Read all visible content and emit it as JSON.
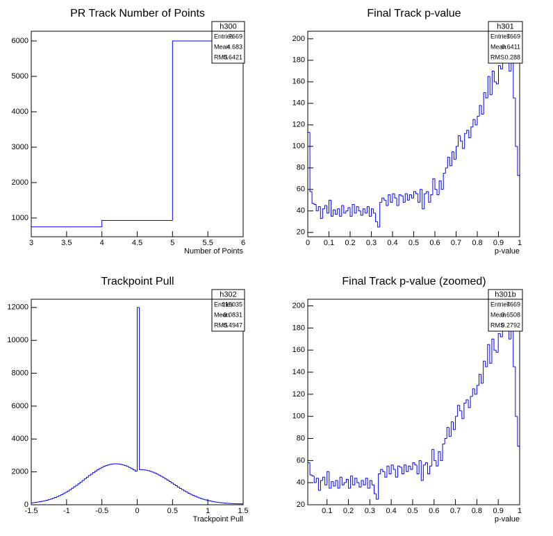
{
  "chart_data": [
    {
      "type": "histogram",
      "title": "PR Track Number of Points",
      "x_label": "Number of Points",
      "color": "#0000ff",
      "bins": [
        3,
        4,
        5,
        6
      ],
      "values": [
        750,
        930,
        6000
      ],
      "xlim": [
        3,
        6
      ],
      "ylim": [
        470,
        6275
      ],
      "xticks": [
        3,
        3.5,
        4,
        4.5,
        5,
        5.5,
        6
      ],
      "yticks": [
        1000,
        2000,
        3000,
        4000,
        5000,
        6000
      ],
      "stats": {
        "name": "h300",
        "labels": [
          "Entries",
          "Mean",
          "RMS"
        ],
        "values": [
          7669,
          4.683,
          0.6421
        ]
      }
    },
    {
      "type": "histogram",
      "title": "Final Track p-value",
      "x_label": "p-value",
      "color": "#0000ff",
      "bins": [
        0,
        0.01,
        0.02,
        0.03,
        0.04,
        0.05,
        0.06,
        0.07,
        0.08,
        0.09,
        0.1,
        0.11,
        0.12,
        0.13,
        0.14,
        0.15,
        0.16,
        0.17,
        0.18,
        0.19,
        0.2,
        0.21,
        0.22,
        0.23,
        0.24,
        0.25,
        0.26,
        0.27,
        0.28,
        0.29,
        0.3,
        0.31,
        0.32,
        0.33,
        0.34,
        0.35,
        0.36,
        0.37,
        0.38,
        0.39,
        0.4,
        0.41,
        0.42,
        0.43,
        0.44,
        0.45,
        0.46,
        0.47,
        0.48,
        0.49,
        0.5,
        0.51,
        0.52,
        0.53,
        0.54,
        0.55,
        0.56,
        0.57,
        0.58,
        0.59,
        0.6,
        0.61,
        0.62,
        0.63,
        0.64,
        0.65,
        0.66,
        0.67,
        0.68,
        0.69,
        0.7,
        0.71,
        0.72,
        0.73,
        0.74,
        0.75,
        0.76,
        0.77,
        0.78,
        0.79,
        0.8,
        0.81,
        0.82,
        0.83,
        0.84,
        0.85,
        0.86,
        0.87,
        0.88,
        0.89,
        0.9,
        0.91,
        0.92,
        0.93,
        0.94,
        0.95,
        0.96,
        0.97,
        0.98,
        0.99,
        1
      ],
      "values": [
        113,
        58,
        47,
        46,
        40,
        44,
        33,
        42,
        45,
        38,
        50,
        35,
        41,
        37,
        42,
        35,
        45,
        38,
        40,
        43,
        35,
        46,
        38,
        44,
        40,
        36,
        42,
        38,
        44,
        35,
        42,
        38,
        30,
        25,
        48,
        52,
        50,
        45,
        55,
        48,
        56,
        52,
        45,
        55,
        54,
        48,
        56,
        50,
        55,
        52,
        58,
        56,
        48,
        60,
        42,
        56,
        58,
        48,
        55,
        70,
        60,
        55,
        68,
        60,
        75,
        80,
        90,
        82,
        95,
        88,
        100,
        110,
        105,
        98,
        112,
        115,
        108,
        118,
        125,
        120,
        128,
        138,
        130,
        150,
        145,
        165,
        148,
        170,
        160,
        158,
        175,
        172,
        180,
        185,
        178,
        170,
        190,
        145,
        100,
        73
      ],
      "xlim": [
        0,
        1
      ],
      "ylim": [
        16,
        207
      ],
      "xticks": [
        0,
        0.1,
        0.2,
        0.3,
        0.4,
        0.5,
        0.6,
        0.7,
        0.8,
        0.9,
        1
      ],
      "yticks": [
        20,
        40,
        60,
        80,
        100,
        120,
        140,
        160,
        180,
        200
      ],
      "stats": {
        "name": "h301",
        "labels": [
          "Entries",
          "Mean",
          "RMS"
        ],
        "values": [
          7669,
          0.6411,
          0.288
        ]
      }
    },
    {
      "type": "histogram",
      "title": "Trackpoint Pull",
      "x_label": "Trackpoint Pull",
      "color": "#0000ff",
      "bins": [
        -1.5,
        -1.47,
        -1.44,
        -1.41,
        -1.38,
        -1.35,
        -1.32,
        -1.29,
        -1.26,
        -1.23,
        -1.2,
        -1.17,
        -1.14,
        -1.11,
        -1.08,
        -1.05,
        -1.02,
        -0.99,
        -0.96,
        -0.93,
        -0.9,
        -0.87,
        -0.84,
        -0.81,
        -0.78,
        -0.75,
        -0.72,
        -0.69,
        -0.66,
        -0.63,
        -0.6,
        -0.57,
        -0.54,
        -0.51,
        -0.48,
        -0.45,
        -0.42,
        -0.39,
        -0.36,
        -0.33,
        -0.3,
        -0.27,
        -0.24,
        -0.21,
        -0.18,
        -0.15,
        -0.12,
        -0.09,
        -0.06,
        -0.03,
        0,
        0.03,
        0.06,
        0.09,
        0.12,
        0.15,
        0.18,
        0.21,
        0.24,
        0.27,
        0.3,
        0.33,
        0.36,
        0.39,
        0.42,
        0.45,
        0.48,
        0.51,
        0.54,
        0.57,
        0.6,
        0.63,
        0.66,
        0.69,
        0.72,
        0.75,
        0.78,
        0.81,
        0.84,
        0.87,
        0.9,
        0.93,
        0.96,
        0.99,
        1.02,
        1.05,
        1.08,
        1.11,
        1.14,
        1.17,
        1.2,
        1.23,
        1.26,
        1.29,
        1.32,
        1.35,
        1.38,
        1.41,
        1.44,
        1.47,
        1.5
      ],
      "values": [
        116,
        131,
        148,
        167,
        189,
        214,
        242,
        274,
        310,
        350,
        394,
        443,
        496,
        554,
        617,
        685,
        758,
        835,
        917,
        1003,
        1093,
        1185,
        1280,
        1378,
        1476,
        1576,
        1674,
        1772,
        1866,
        1958,
        2044,
        2126,
        2202,
        2270,
        2331,
        2382,
        2425,
        2456,
        2478,
        2489,
        2489,
        2478,
        2456,
        2425,
        2382,
        2331,
        2270,
        2202,
        2126,
        2044,
        12000,
        2140,
        2136,
        2124,
        2102,
        2073,
        2033,
        1987,
        1932,
        1871,
        1806,
        1734,
        1657,
        1579,
        1497,
        1413,
        1327,
        1243,
        1159,
        1075,
        995,
        916,
        840,
        769,
        699,
        634,
        573,
        517,
        464,
        416,
        372,
        330,
        294,
        261,
        231,
        205,
        182,
        161,
        143,
        127,
        114,
        102,
        92,
        83,
        76,
        69,
        64,
        60,
        56,
        53
      ],
      "xlim": [
        -1.5,
        1.5
      ],
      "ylim": [
        0,
        12500
      ],
      "xticks": [
        -1.5,
        -1,
        -0.5,
        0,
        0.5,
        1,
        1.5
      ],
      "yticks": [
        0,
        2000,
        4000,
        6000,
        8000,
        10000,
        12000
      ],
      "stats": {
        "name": "h302",
        "labels": [
          "Entries",
          "Mean",
          "RMS"
        ],
        "values": [
          115035,
          -0.0831,
          0.4947
        ]
      }
    },
    {
      "type": "histogram",
      "title": "Final Track p-value (zoomed)",
      "x_label": "p-value",
      "color": "#0000ff",
      "bins": [
        0.01,
        0.02,
        0.03,
        0.04,
        0.05,
        0.06,
        0.07,
        0.08,
        0.09,
        0.1,
        0.11,
        0.12,
        0.13,
        0.14,
        0.15,
        0.16,
        0.17,
        0.18,
        0.19,
        0.2,
        0.21,
        0.22,
        0.23,
        0.24,
        0.25,
        0.26,
        0.27,
        0.28,
        0.29,
        0.3,
        0.31,
        0.32,
        0.33,
        0.34,
        0.35,
        0.36,
        0.37,
        0.38,
        0.39,
        0.4,
        0.41,
        0.42,
        0.43,
        0.44,
        0.45,
        0.46,
        0.47,
        0.48,
        0.49,
        0.5,
        0.51,
        0.52,
        0.53,
        0.54,
        0.55,
        0.56,
        0.57,
        0.58,
        0.59,
        0.6,
        0.61,
        0.62,
        0.63,
        0.64,
        0.65,
        0.66,
        0.67,
        0.68,
        0.69,
        0.7,
        0.71,
        0.72,
        0.73,
        0.74,
        0.75,
        0.76,
        0.77,
        0.78,
        0.79,
        0.8,
        0.81,
        0.82,
        0.83,
        0.84,
        0.85,
        0.86,
        0.87,
        0.88,
        0.89,
        0.9,
        0.91,
        0.92,
        0.93,
        0.94,
        0.95,
        0.96,
        0.97,
        0.98,
        0.99,
        1
      ],
      "values": [
        58,
        47,
        46,
        40,
        44,
        33,
        42,
        45,
        38,
        50,
        35,
        41,
        37,
        42,
        35,
        45,
        38,
        40,
        43,
        35,
        46,
        38,
        44,
        40,
        36,
        42,
        38,
        44,
        35,
        42,
        38,
        30,
        25,
        48,
        52,
        50,
        45,
        55,
        48,
        56,
        52,
        45,
        55,
        54,
        48,
        56,
        50,
        55,
        52,
        58,
        56,
        48,
        60,
        42,
        56,
        58,
        48,
        55,
        70,
        60,
        55,
        68,
        60,
        75,
        80,
        90,
        82,
        95,
        88,
        100,
        110,
        105,
        98,
        112,
        115,
        108,
        118,
        125,
        120,
        128,
        138,
        130,
        150,
        145,
        165,
        148,
        170,
        160,
        158,
        175,
        172,
        180,
        185,
        178,
        170,
        190,
        145,
        100,
        73
      ],
      "xlim": [
        0.01,
        1
      ],
      "ylim": [
        20,
        206
      ],
      "xticks": [
        0.1,
        0.2,
        0.3,
        0.4,
        0.5,
        0.6,
        0.7,
        0.8,
        0.9,
        1
      ],
      "yticks": [
        20,
        40,
        60,
        80,
        100,
        120,
        140,
        160,
        180,
        200
      ],
      "stats": {
        "name": "h301b",
        "labels": [
          "Entries",
          "Mean",
          "RMS"
        ],
        "values": [
          7669,
          0.6508,
          0.2792
        ]
      }
    }
  ]
}
